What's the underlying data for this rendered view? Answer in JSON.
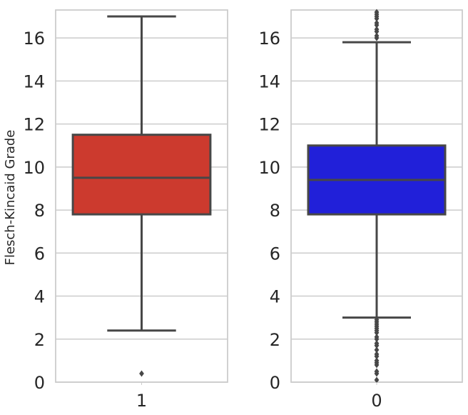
{
  "chart_data": [
    {
      "type": "box",
      "ylabel": "Flesch-Kincaid Grade",
      "ylim": [
        0,
        17.3
      ],
      "yticks": [
        0,
        2,
        4,
        6,
        8,
        10,
        12,
        14,
        16
      ],
      "grid": "y",
      "categories": [
        "1"
      ],
      "boxes": [
        {
          "category": "1",
          "color": "#cc3a2e",
          "whisker_low": 2.4,
          "q1": 7.8,
          "median": 9.5,
          "q3": 11.5,
          "whisker_high": 17.0,
          "outliers": [
            0.4
          ]
        }
      ]
    },
    {
      "type": "box",
      "ylabel": "",
      "ylim": [
        0,
        17.3
      ],
      "yticks": [
        0,
        2,
        4,
        6,
        8,
        10,
        12,
        14,
        16
      ],
      "grid": "y",
      "categories": [
        "0"
      ],
      "boxes": [
        {
          "category": "0",
          "color": "#2120d9",
          "whisker_low": 3.0,
          "q1": 7.8,
          "median": 9.4,
          "q3": 11.0,
          "whisker_high": 15.8,
          "outliers": [
            0.1,
            0.4,
            0.5,
            0.8,
            0.9,
            1.0,
            1.2,
            1.3,
            1.5,
            1.7,
            1.8,
            2.0,
            2.1,
            2.3,
            2.4,
            2.5,
            2.6,
            2.7,
            2.8,
            2.9,
            16.0,
            16.1,
            16.3,
            16.4,
            16.6,
            16.7,
            16.9,
            17.0,
            17.1,
            17.2
          ]
        }
      ]
    }
  ]
}
